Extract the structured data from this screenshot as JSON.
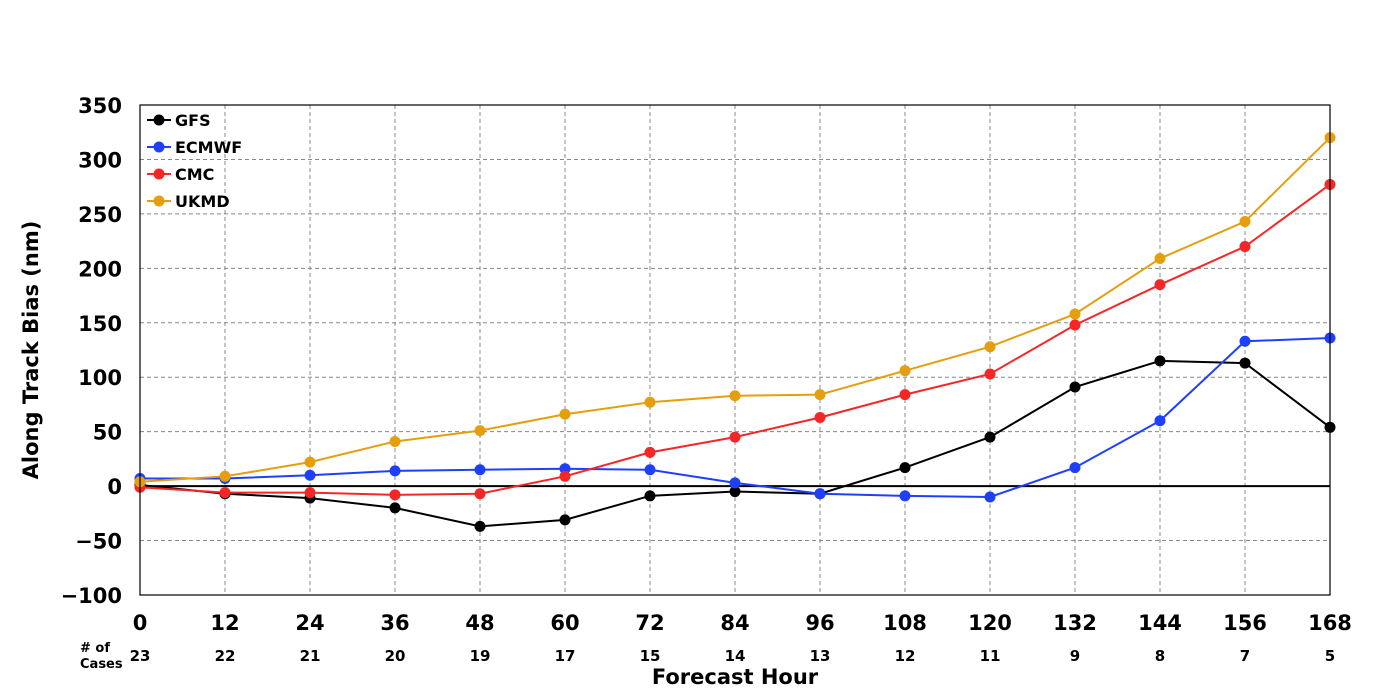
{
  "chart_data": {
    "type": "line",
    "title": "",
    "xlabel": "Forecast Hour",
    "ylabel": "Along Track Bias (nm)",
    "x": [
      0,
      12,
      24,
      36,
      48,
      60,
      72,
      84,
      96,
      108,
      120,
      132,
      144,
      156,
      168
    ],
    "xlim": [
      0,
      168
    ],
    "ylim": [
      -100,
      350
    ],
    "yticks": [
      -100,
      -50,
      0,
      50,
      100,
      150,
      200,
      250,
      300,
      350
    ],
    "ytick_labels": [
      "−100",
      "−50",
      "0",
      "50",
      "100",
      "150",
      "200",
      "250",
      "300",
      "350"
    ],
    "grid": true,
    "legend_position": "top-left",
    "cases_label_line1": "# of",
    "cases_label_line2": "Cases",
    "cases": [
      23,
      22,
      21,
      20,
      19,
      17,
      15,
      14,
      13,
      12,
      11,
      9,
      8,
      7,
      5
    ],
    "series": [
      {
        "name": "GFS",
        "color": "#000000",
        "values": [
          1,
          -7,
          -11,
          -20,
          -37,
          -31,
          -9,
          -5,
          -7,
          17,
          45,
          91,
          115,
          113,
          54
        ]
      },
      {
        "name": "ECMWF",
        "color": "#1f3fff",
        "values": [
          7,
          7,
          10,
          14,
          15,
          16,
          15,
          3,
          -7,
          -9,
          -10,
          17,
          60,
          133,
          136
        ]
      },
      {
        "name": "CMC",
        "color": "#f52626",
        "values": [
          -1,
          -6,
          -6,
          -8,
          -7,
          9,
          31,
          45,
          63,
          84,
          103,
          148,
          185,
          220,
          277
        ]
      },
      {
        "name": "UKMD",
        "color": "#e59f0e",
        "values": [
          4,
          9,
          22,
          41,
          51,
          66,
          77,
          83,
          84,
          106,
          128,
          158,
          209,
          243,
          320
        ]
      }
    ]
  }
}
